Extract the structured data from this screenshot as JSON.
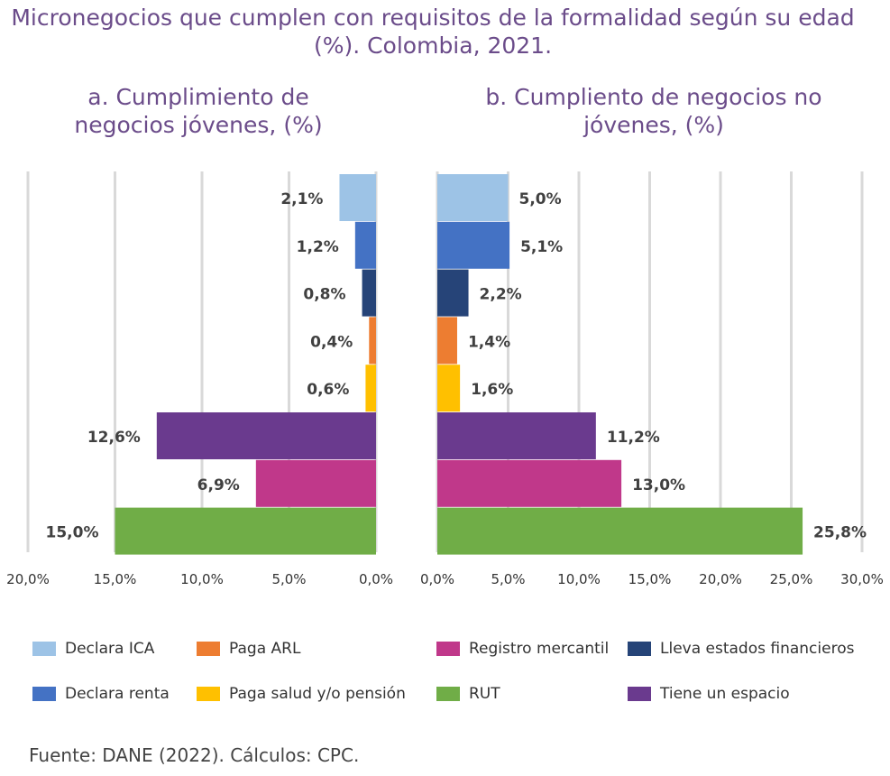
{
  "title": "Micronegocios que cumplen con requisitos de la formalidad según su edad (%). Colombia, 2021.",
  "source": "Fuente: DANE (2022). Cálculos: CPC.",
  "chart_data": [
    {
      "type": "bar",
      "orientation": "horizontal",
      "direction": "reversed",
      "title": "a. Cumplimiento de negocios jóvenes, (%)",
      "categories": [
        "Declara ICA",
        "Declara renta",
        "Lleva estados financieros",
        "Paga ARL",
        "Paga salud y/o pensión",
        "Tiene un espacio",
        "Registro mercantil",
        "RUT"
      ],
      "values": [
        2.1,
        1.2,
        0.8,
        0.4,
        0.6,
        12.6,
        6.9,
        15.0
      ],
      "value_labels": [
        "2,1%",
        "1,2%",
        "0,8%",
        "0,4%",
        "0,6%",
        "12,6%",
        "6,9%",
        "15,0%"
      ],
      "xlim": [
        0,
        20
      ],
      "ticks": [
        0,
        5,
        10,
        15,
        20
      ],
      "tick_labels": [
        "0,0%",
        "5,0%",
        "10,0%",
        "15,0%",
        "20,0%"
      ],
      "grid": true
    },
    {
      "type": "bar",
      "orientation": "horizontal",
      "title": "b. Cumpliento de negocios no jóvenes, (%)",
      "categories": [
        "Declara ICA",
        "Declara renta",
        "Lleva estados financieros",
        "Paga ARL",
        "Paga salud y/o pensión",
        "Tiene un espacio",
        "Registro mercantil",
        "RUT"
      ],
      "values": [
        5.0,
        5.1,
        2.2,
        1.4,
        1.6,
        11.2,
        13.0,
        25.8
      ],
      "value_labels": [
        "5,0%",
        "5,1%",
        "2,2%",
        "1,4%",
        "1,6%",
        "11,2%",
        "13,0%",
        "25,8%"
      ],
      "xlim": [
        0,
        30
      ],
      "ticks": [
        0,
        5,
        10,
        15,
        20,
        25,
        30
      ],
      "tick_labels": [
        "0,0%",
        "5,0%",
        "10,0%",
        "15,0%",
        "20,0%",
        "25,0%",
        "30,0%"
      ],
      "grid": true
    }
  ],
  "colors": {
    "Declara ICA": "#9dc3e6",
    "Declara renta": "#4472c4",
    "Lleva estados financieros": "#264478",
    "Paga ARL": "#ed7d31",
    "Paga salud y/o pensión": "#ffc000",
    "Tiene un espacio": "#6a3a8e",
    "Registro mercantil": "#c0388a",
    "RUT": "#70ad47"
  },
  "legend": {
    "placement": "bottom",
    "items": [
      "Declara ICA",
      "Paga ARL",
      "Registro mercantil",
      "Lleva estados financieros",
      "Declara renta",
      "Paga salud y/o pensión",
      "RUT",
      "Tiene un espacio"
    ]
  }
}
